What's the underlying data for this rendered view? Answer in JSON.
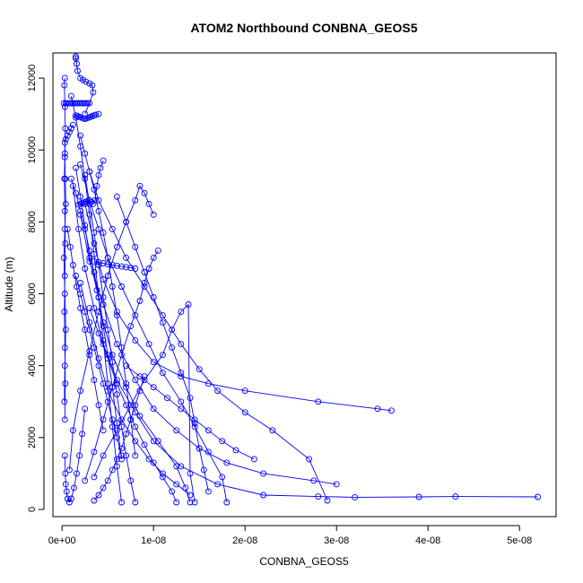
{
  "chart_data": {
    "type": "line",
    "title": "ATOM2 Northbound CONBNA_GEOS5",
    "xlabel": "CONBNA_GEOS5",
    "ylabel": "Altitude (m)",
    "xlim": [
      -1e-09,
      5.4e-08
    ],
    "ylim": [
      -200,
      12700
    ],
    "x_ticks": [
      0,
      1e-08,
      2e-08,
      3e-08,
      4e-08,
      5e-08
    ],
    "x_tick_labels": [
      "0e+00",
      "1e-08",
      "2e-08",
      "3e-08",
      "4e-08",
      "5e-08"
    ],
    "y_ticks": [
      0,
      2000,
      4000,
      6000,
      8000,
      10000,
      12000
    ],
    "y_tick_labels": [
      "0",
      "2000",
      "4000",
      "6000",
      "8000",
      "10000",
      "12000"
    ],
    "grid": false,
    "legend": "none",
    "marker": "open-circle",
    "color": "#0000ff",
    "series": [
      {
        "x": [
          1.4e-08,
          1.35e-08,
          1.25e-08,
          1.05e-08,
          8.5e-09,
          7e-09,
          5.5e-09,
          4.5e-09,
          3.8e-09,
          3e-09,
          2.5e-09,
          2e-09,
          1.5e-09
        ],
        "y": [
          200,
          600,
          1200,
          1900,
          2600,
          3400,
          4300,
          5200,
          6100,
          7000,
          7900,
          8700,
          9500
        ]
      },
      {
        "x": [
          5.2e-08,
          4.3e-08,
          3.9e-08,
          3.2e-08,
          2.8e-08,
          2.2e-08,
          1.7e-08,
          1.3e-08,
          1e-08,
          8e-09,
          6e-09,
          4.5e-09,
          3.5e-09,
          2.5e-09,
          1.8e-09,
          1.2e-09
        ],
        "y": [
          350,
          360,
          350,
          340,
          360,
          400,
          700,
          1200,
          1900,
          2700,
          3600,
          4600,
          5600,
          6700,
          7800,
          9000
        ]
      },
      {
        "x": [
          3.6e-08,
          3.45e-08,
          2.8e-08,
          2e-08,
          1.6e-08,
          1.3e-08,
          1e-08,
          8e-09,
          6e-09,
          4.5e-09,
          3.5e-09,
          2.5e-09
        ],
        "y": [
          2750,
          2800,
          3000,
          3300,
          3500,
          3700,
          4100,
          4700,
          5500,
          6400,
          7400,
          8500
        ]
      },
      {
        "x": [
          3e-08,
          2.75e-08,
          2.2e-08,
          1.8e-08,
          1.5e-08,
          1.25e-08,
          1e-08,
          8e-09,
          6e-09,
          4.5e-09,
          3e-09,
          2e-09
        ],
        "y": [
          700,
          800,
          1000,
          1300,
          1700,
          2200,
          2800,
          3600,
          4600,
          5700,
          6900,
          8200
        ]
      },
      {
        "x": [
          2.9e-08,
          2.7e-08,
          2.3e-08,
          2e-08,
          1.7e-08,
          1.5e-08,
          1.3e-08,
          1.1e-08,
          9e-09,
          7e-09,
          5.5e-09,
          4e-09,
          3e-09
        ],
        "y": [
          250,
          1400,
          2200,
          2700,
          3300,
          3900,
          4600,
          5400,
          6200,
          7000,
          7800,
          8600,
          9400
        ]
      },
      {
        "x": [
          1.8e-08,
          1.75e-08,
          1.6e-08,
          1.45e-08,
          1.3e-08,
          1.1e-08,
          9.5e-09,
          8e-09,
          6.5e-09,
          5e-09,
          4e-09,
          3e-09,
          2e-09
        ],
        "y": [
          200,
          900,
          1600,
          2300,
          3000,
          3800,
          4600,
          5400,
          6200,
          7000,
          7800,
          8600,
          9600
        ]
      },
      {
        "x": [
          1.45e-08,
          1.4e-08,
          1.38e-08,
          1.3e-08,
          1.2e-08,
          1.1e-08,
          9e-09,
          7.5e-09,
          6e-09,
          4.5e-09,
          3.5e-09
        ],
        "y": [
          200,
          1000,
          5700,
          5500,
          5000,
          4300,
          3600,
          2900,
          2200,
          1500,
          900
        ]
      },
      {
        "x": [
          1.05e-08,
          1e-08,
          9.5e-09,
          9e-09,
          8.5e-09,
          7.5e-09,
          6.5e-09,
          5.5e-09,
          4.5e-09,
          3.5e-09,
          2.5e-09
        ],
        "y": [
          7200,
          7000,
          6700,
          6300,
          5800,
          5100,
          4300,
          3400,
          2500,
          1600,
          800
        ]
      },
      {
        "x": [
          1e-08,
          9.5e-09,
          9e-09,
          8.5e-09,
          8e-09,
          7e-09,
          6e-09,
          5e-09,
          4e-09,
          3e-09,
          2e-09,
          1.2e-09,
          8e-10
        ],
        "y": [
          8200,
          8500,
          8800,
          9000,
          8600,
          8000,
          7300,
          6500,
          5500,
          4400,
          3300,
          2200,
          1100
        ]
      },
      {
        "x": [
          8e-09,
          7.5e-09,
          7e-09,
          6.5e-09,
          6e-09,
          5.5e-09,
          5e-09,
          4.5e-09,
          4e-09,
          3.5e-09
        ],
        "y": [
          6700,
          6720,
          6740,
          6760,
          6780,
          6800,
          6820,
          6850,
          6880,
          6900
        ]
      },
      {
        "x": [
          6.5e-09,
          6e-09,
          5.5e-09,
          5e-09,
          4.5e-09,
          4e-09,
          3.5e-09,
          3e-09,
          2.5e-09,
          2e-09,
          1.5e-09,
          1e-09
        ],
        "y": [
          200,
          1200,
          2300,
          3500,
          4700,
          5900,
          7100,
          8200,
          9200,
          10100,
          10900,
          11500
        ]
      },
      {
        "x": [
          8e-09,
          7.5e-09,
          7e-09,
          6.5e-09,
          6e-09,
          5.5e-09,
          5e-09,
          4.5e-09,
          4e-09,
          3.5e-09,
          3e-09,
          2.5e-09
        ],
        "y": [
          200,
          800,
          1500,
          2300,
          3200,
          4100,
          5000,
          5900,
          6800,
          7700,
          8500,
          9300
        ]
      },
      {
        "x": [
          4.5e-09,
          4.2e-09,
          4e-09,
          3.8e-09,
          3.6e-09,
          3.4e-09,
          3.2e-09,
          3e-09,
          2.8e-09,
          2.6e-09,
          2.4e-09,
          2.2e-09,
          2e-09,
          1.8e-09
        ],
        "y": [
          9700,
          9500,
          9300,
          9000,
          8600,
          8500,
          8550,
          8600,
          8580,
          8560,
          8540,
          8520,
          8500,
          8480
        ]
      },
      {
        "x": [
          4e-09,
          3.7e-09,
          3.5e-09,
          3.3e-09,
          3.1e-09,
          2.9e-09,
          2.7e-09,
          2.5e-09,
          2.3e-09,
          2.1e-09,
          1.9e-09,
          1.7e-09,
          1.5e-09
        ],
        "y": [
          11000,
          10980,
          10960,
          10940,
          10920,
          10900,
          10880,
          10860,
          10880,
          10900,
          10920,
          10940,
          10960
        ]
      },
      {
        "x": [
          2.8e-09,
          2.6e-09,
          2.4e-09,
          2.2e-09,
          2e-09,
          1.8e-09,
          1.6e-09,
          1.4e-09,
          1.2e-09,
          1e-09,
          8e-10,
          6e-10,
          4e-10,
          2e-10
        ],
        "y": [
          11300,
          11300,
          11300,
          11300,
          11300,
          11300,
          11300,
          11300,
          11300,
          11300,
          11300,
          11300,
          11300,
          11300
        ]
      },
      {
        "x": [
          1.5e-09,
          1.5e-09,
          1.6e-09,
          1.7e-09,
          2e-09,
          2.3e-09,
          2.6e-09,
          3e-09,
          3.3e-09,
          3.4e-09,
          3e-09,
          2.5e-09
        ],
        "y": [
          12600,
          12550,
          12400,
          12200,
          12000,
          11950,
          11900,
          11850,
          11800,
          11600,
          11300,
          11000
        ]
      },
      {
        "x": [
          1.2e-09,
          1e-09,
          8e-10,
          6e-10,
          4e-10,
          3e-10,
          3e-10,
          3.5e-10,
          4e-10,
          3e-10,
          2e-10,
          3e-10,
          4e-10,
          3e-10,
          2.5e-10
        ],
        "y": [
          10700,
          10600,
          10500,
          10400,
          10300,
          10200,
          9800,
          9200,
          8500,
          7800,
          7000,
          6000,
          5000,
          4000,
          3000
        ]
      },
      {
        "x": [
          3e-10,
          2.5e-10,
          3e-10,
          3.5e-10,
          3e-10,
          2.5e-10,
          3e-10,
          3.5e-10,
          3e-10,
          2.5e-10,
          3e-10,
          3.5e-10,
          3e-10
        ],
        "y": [
          12000,
          11800,
          11200,
          10600,
          9900,
          9200,
          8300,
          7400,
          6500,
          5500,
          4500,
          3500,
          2500
        ]
      },
      {
        "x": [
          3e-10,
          3.5e-10,
          4e-10,
          5e-10,
          6e-10,
          8e-10,
          1e-09,
          1.3e-09,
          1.6e-09,
          1.9e-09,
          2.2e-09,
          2.5e-09
        ],
        "y": [
          1500,
          1000,
          700,
          500,
          300,
          200,
          300,
          600,
          1000,
          1500,
          2100,
          2800
        ]
      },
      {
        "x": [
          1.4e-08,
          1.25e-08,
          1.1e-08,
          9.5e-09,
          8e-09,
          6.5e-09,
          5e-09,
          4e-09,
          3e-09,
          2e-09
        ],
        "y": [
          400,
          700,
          1000,
          1400,
          1900,
          2500,
          3300,
          4200,
          5200,
          6300
        ]
      },
      {
        "x": [
          1.6e-08,
          1.55e-08,
          1.5e-08,
          1.45e-08,
          1.4e-08,
          1.3e-08,
          1.2e-08,
          1.1e-08,
          1e-08,
          9e-09,
          8e-09,
          7e-09,
          6e-09
        ],
        "y": [
          500,
          1100,
          1700,
          2400,
          3100,
          3800,
          4500,
          5200,
          5900,
          6600,
          7300,
          8000,
          8700
        ]
      },
      {
        "x": [
          1.25e-08,
          1.2e-08,
          1.1e-08,
          1e-08,
          9e-09,
          8e-09,
          7e-09,
          6e-09,
          5e-09,
          4e-09,
          3e-09
        ],
        "y": [
          200,
          500,
          900,
          1300,
          1800,
          2300,
          2900,
          3500,
          4200,
          4900,
          5600
        ]
      },
      {
        "x": [
          2.1e-08,
          1.9e-08,
          1.75e-08,
          1.6e-08,
          1.45e-08,
          1.3e-08,
          1.15e-08,
          1e-08,
          8.5e-09,
          7e-09
        ],
        "y": [
          1400,
          1650,
          1900,
          2200,
          2500,
          2800,
          3100,
          3400,
          3700,
          4000
        ]
      },
      {
        "x": [
          1e-09,
          1.5e-09,
          2e-09,
          2.5e-09,
          3e-09,
          3.5e-09,
          4e-09,
          4.5e-09,
          5e-09,
          5.5e-09,
          6e-09,
          6.5e-09
        ],
        "y": [
          9200,
          8800,
          8300,
          7800,
          7200,
          6600,
          5900,
          5100,
          4300,
          3400,
          2400,
          1400
        ]
      },
      {
        "x": [
          2e-09,
          2.5e-09,
          3e-09,
          3.5e-09,
          4e-09,
          4.5e-09,
          5e-09,
          5.5e-09,
          6e-09,
          6.5e-09,
          7e-09,
          7.5e-09,
          8e-09
        ],
        "y": [
          10400,
          9900,
          9400,
          8900,
          8300,
          7700,
          7000,
          6200,
          5400,
          4500,
          3500,
          2500,
          1500
        ]
      },
      {
        "x": [
          1.5e-09,
          2e-09,
          2.5e-09,
          3e-09,
          3.5e-09,
          4e-09,
          4.5e-09,
          5e-09,
          5.5e-09,
          6e-09,
          6.5e-09
        ],
        "y": [
          6500,
          6000,
          5500,
          5000,
          4500,
          4000,
          3500,
          3000,
          2500,
          2000,
          1500
        ]
      },
      {
        "x": [
          6e-10,
          9e-10,
          1.2e-09,
          1.6e-09,
          2e-09,
          2.5e-09,
          3e-09,
          3.5e-09,
          4e-09,
          4.5e-09
        ],
        "y": [
          7800,
          7300,
          6800,
          6200,
          5600,
          5000,
          4300,
          3600,
          2900,
          2200
        ]
      },
      {
        "x": [
          9e-09,
          8.5e-09,
          8e-09,
          7.5e-09,
          7e-09,
          6.5e-09,
          6e-09,
          5.5e-09,
          5e-09,
          4.5e-09,
          4e-09,
          3.5e-09
        ],
        "y": [
          3700,
          3300,
          2900,
          2500,
          2100,
          1700,
          1400,
          1100,
          800,
          600,
          400,
          250
        ]
      }
    ]
  }
}
